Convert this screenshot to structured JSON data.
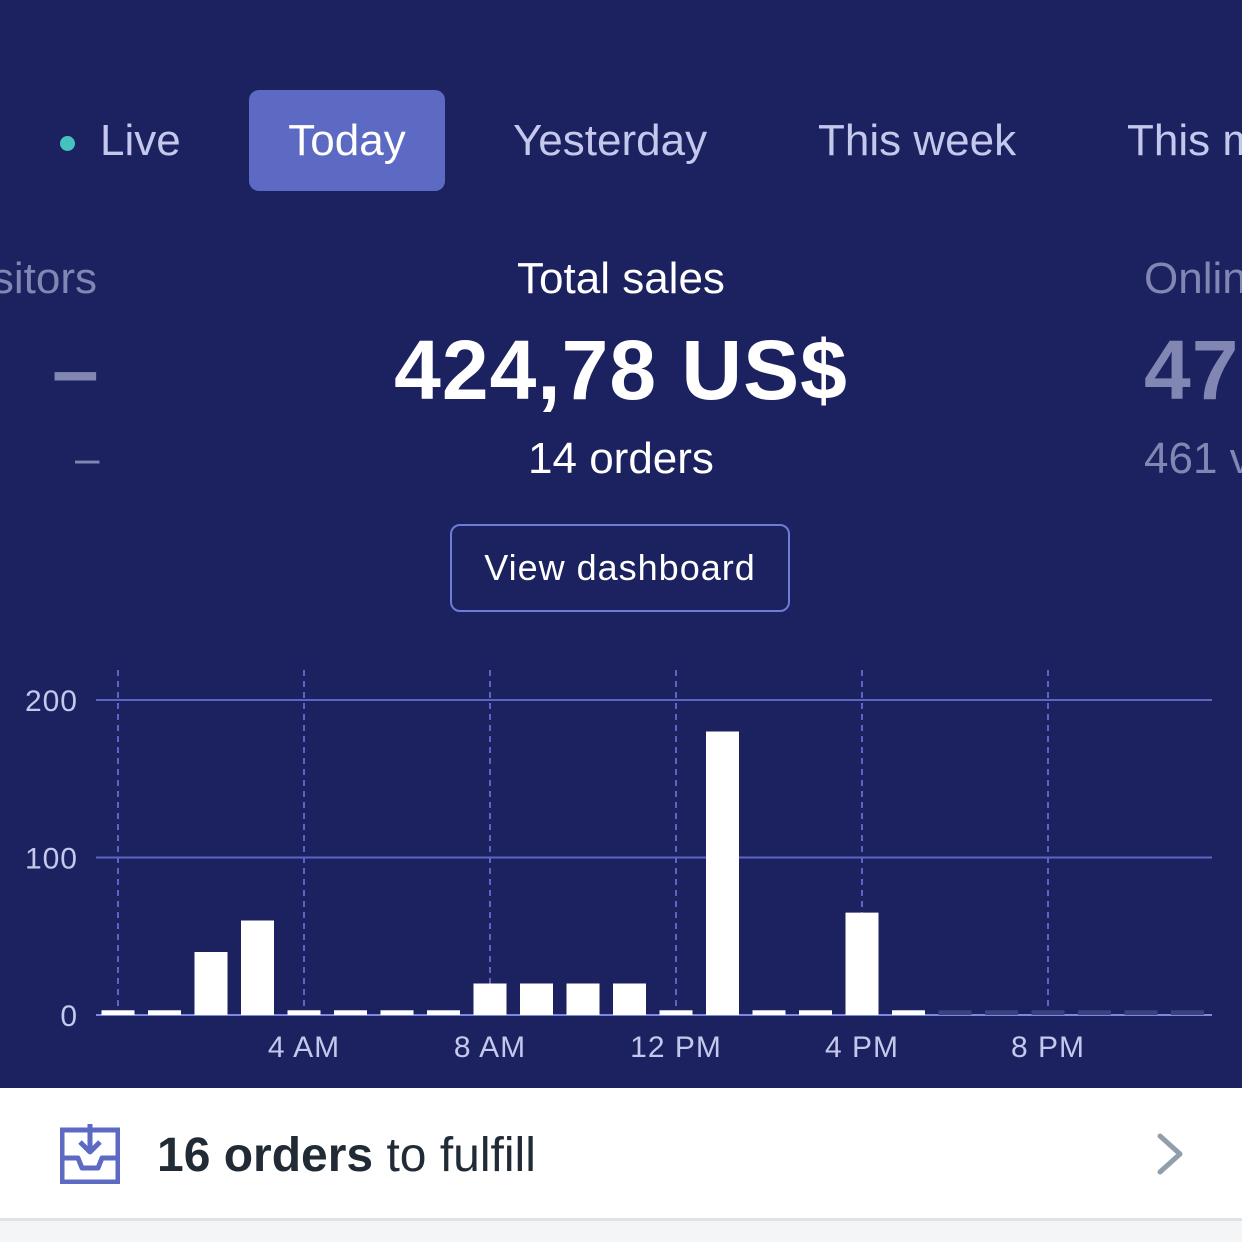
{
  "tabs": [
    {
      "label": "Live",
      "active": false
    },
    {
      "label": "Today",
      "active": true
    },
    {
      "label": "Yesterday",
      "active": false
    },
    {
      "label": "This week",
      "active": false
    },
    {
      "label": "This m",
      "active": false
    }
  ],
  "metrics": {
    "left": {
      "title": "sitors",
      "value": "–",
      "sub": "–"
    },
    "center": {
      "title": "Total sales",
      "value": "424,78 US$",
      "sub": "14 orders"
    },
    "right": {
      "title": "Onlin",
      "value": "47",
      "sub": "461 v"
    }
  },
  "view_dashboard_label": "View dashboard",
  "chart_data": {
    "type": "bar",
    "ylim": [
      0,
      200
    ],
    "yticks": [
      "0",
      "100",
      "200"
    ],
    "xtick_labels": [
      "4 AM",
      "8 AM",
      "12 PM",
      "4 PM",
      "8 PM"
    ],
    "values": [
      3,
      3,
      40,
      60,
      3,
      3,
      3,
      3,
      20,
      20,
      20,
      20,
      3,
      180,
      3,
      3,
      65,
      3,
      3,
      3,
      3,
      3,
      3,
      3
    ],
    "future_start_index": 18,
    "colors": {
      "bar": "#ffffff",
      "future_bar": "#3a4380",
      "grid": "#5c65c4",
      "axis": "#7f88e0",
      "tick": "#c4c8ec"
    }
  },
  "fulfill": {
    "count_text": "16 orders",
    "suffix_text": " to fulfill",
    "icon": "inbox-download-icon",
    "chevron": "chevron-right-icon"
  }
}
